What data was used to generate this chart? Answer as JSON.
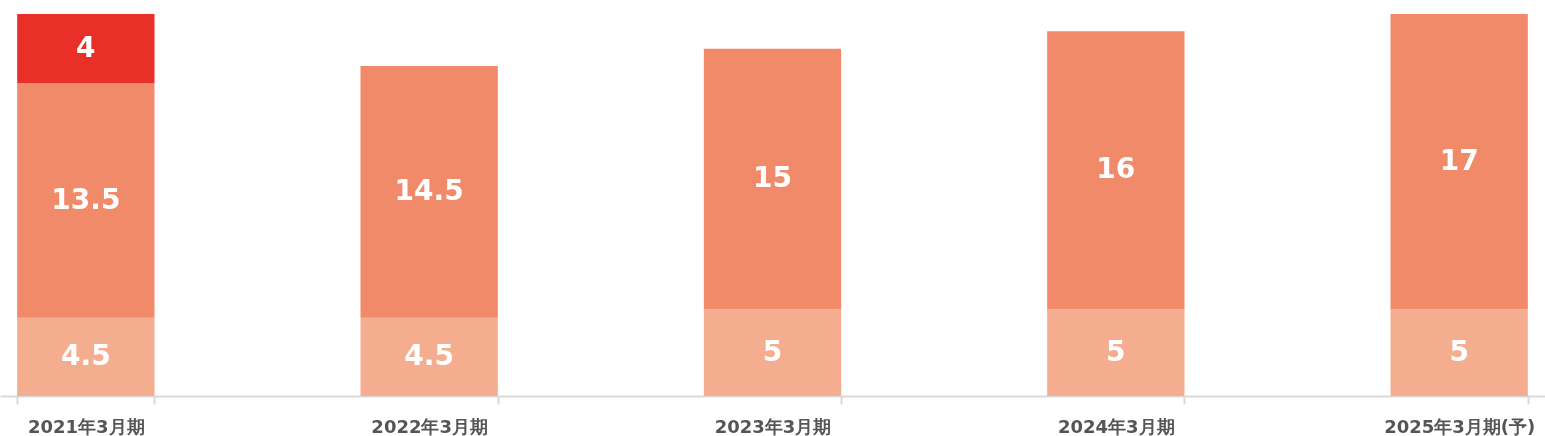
{
  "chart_data": {
    "type": "bar",
    "stacked": true,
    "data_labels": true,
    "tick_labels": "x",
    "ylim": [
      0,
      22.8
    ],
    "categories": [
      "2021年3月期",
      "2022年3月期",
      "2023年3月期",
      "2024年3月期",
      "2025年3月期(予)"
    ],
    "series": [
      {
        "color": "#f5ad8f",
        "values": [
          4.5,
          4.5,
          5,
          5,
          5
        ]
      },
      {
        "color": "#f18a69",
        "values": [
          13.5,
          14.5,
          15,
          16,
          17
        ]
      },
      {
        "color": "#e82f28",
        "values": [
          4,
          null,
          null,
          null,
          null
        ]
      }
    ]
  }
}
